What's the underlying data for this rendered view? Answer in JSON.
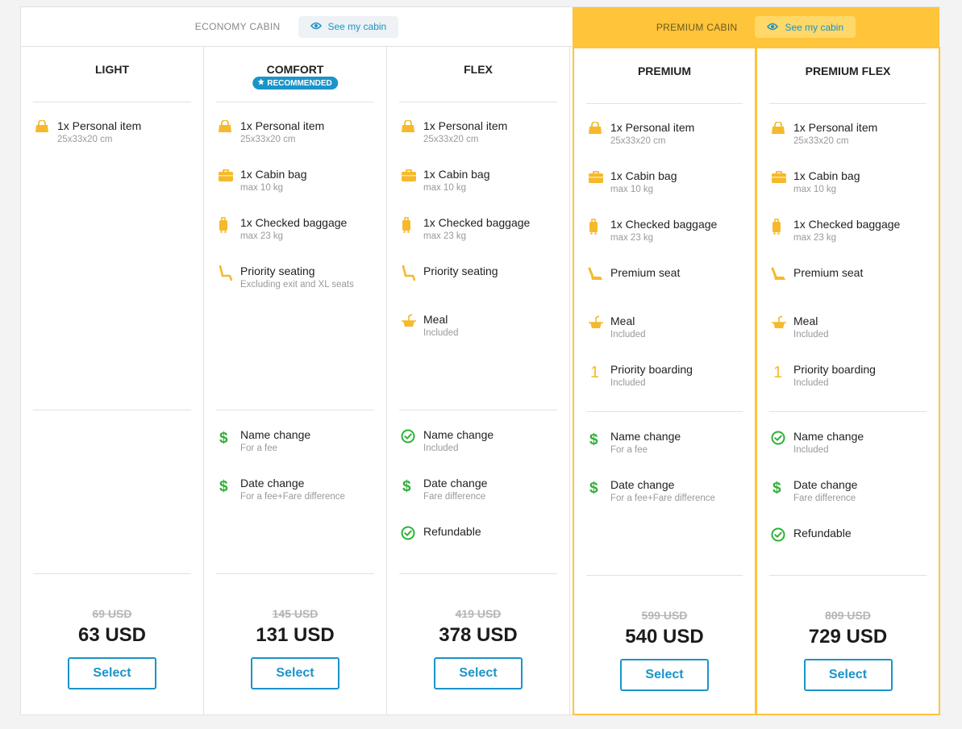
{
  "cabins": {
    "economy": {
      "label": "ECONOMY CABIN",
      "button": "See my cabin"
    },
    "premium": {
      "label": "PREMIUM CABIN",
      "button": "See my cabin"
    }
  },
  "colors": {
    "accent": "#1a94c9",
    "premium": "#fec43a",
    "icon_yellow": "#f5b92b",
    "icon_green": "#2eb135"
  },
  "fares": [
    {
      "name": "LIGHT",
      "badge": "",
      "features": [
        {
          "icon": "handbag-icon",
          "title": "1x Personal item",
          "sub": "25x33x20 cm"
        }
      ],
      "flex": [],
      "old_price": "69 USD",
      "price": "63 USD",
      "select": "Select"
    },
    {
      "name": "COMFORT",
      "badge": "RECOMMENDED",
      "features": [
        {
          "icon": "handbag-icon",
          "title": "1x Personal item",
          "sub": "25x33x20 cm"
        },
        {
          "icon": "cabin-bag-icon",
          "title": "1x Cabin bag",
          "sub": "max 10 kg"
        },
        {
          "icon": "checked-bag-icon",
          "title": "1x Checked baggage",
          "sub": "max 23 kg"
        },
        {
          "icon": "seat-icon",
          "title": "Priority seating",
          "sub": "Excluding exit and XL seats"
        }
      ],
      "flex": [
        {
          "icon": "dollar-icon",
          "title": "Name change",
          "sub": "For a fee"
        },
        {
          "icon": "dollar-icon",
          "title": "Date change",
          "sub": "For a fee+Fare difference"
        }
      ],
      "old_price": "145 USD",
      "price": "131 USD",
      "select": "Select"
    },
    {
      "name": "FLEX",
      "badge": "",
      "features": [
        {
          "icon": "handbag-icon",
          "title": "1x Personal item",
          "sub": "25x33x20 cm"
        },
        {
          "icon": "cabin-bag-icon",
          "title": "1x Cabin bag",
          "sub": "max 10 kg"
        },
        {
          "icon": "checked-bag-icon",
          "title": "1x Checked baggage",
          "sub": "max 23 kg"
        },
        {
          "icon": "seat-icon",
          "title": "Priority seating",
          "sub": ""
        },
        {
          "icon": "meal-icon",
          "title": "Meal",
          "sub": "Included"
        }
      ],
      "flex": [
        {
          "icon": "check-circle-icon",
          "title": "Name change",
          "sub": "Included"
        },
        {
          "icon": "dollar-icon",
          "title": "Date change",
          "sub": "Fare difference"
        },
        {
          "icon": "check-circle-icon",
          "title": "Refundable",
          "sub": ""
        }
      ],
      "old_price": "419 USD",
      "price": "378 USD",
      "select": "Select"
    },
    {
      "name": "PREMIUM",
      "badge": "",
      "features": [
        {
          "icon": "handbag-icon",
          "title": "1x Personal item",
          "sub": "25x33x20 cm"
        },
        {
          "icon": "cabin-bag-icon",
          "title": "1x Cabin bag",
          "sub": "max 10 kg"
        },
        {
          "icon": "checked-bag-icon",
          "title": "1x Checked baggage",
          "sub": "max 23 kg"
        },
        {
          "icon": "premium-seat-icon",
          "title": "Premium seat",
          "sub": ""
        },
        {
          "icon": "meal-icon",
          "title": "Meal",
          "sub": "Included"
        },
        {
          "icon": "priority-boarding-icon",
          "title": "Priority boarding",
          "sub": "Included"
        }
      ],
      "flex": [
        {
          "icon": "dollar-icon",
          "title": "Name change",
          "sub": "For a fee"
        },
        {
          "icon": "dollar-icon",
          "title": "Date change",
          "sub": "For a fee+Fare difference"
        }
      ],
      "old_price": "599 USD",
      "price": "540 USD",
      "select": "Select"
    },
    {
      "name": "PREMIUM FLEX",
      "badge": "",
      "features": [
        {
          "icon": "handbag-icon",
          "title": "1x Personal item",
          "sub": "25x33x20 cm"
        },
        {
          "icon": "cabin-bag-icon",
          "title": "1x Cabin bag",
          "sub": "max 10 kg"
        },
        {
          "icon": "checked-bag-icon",
          "title": "1x Checked baggage",
          "sub": "max 23 kg"
        },
        {
          "icon": "premium-seat-icon",
          "title": "Premium seat",
          "sub": ""
        },
        {
          "icon": "meal-icon",
          "title": "Meal",
          "sub": "Included"
        },
        {
          "icon": "priority-boarding-icon",
          "title": "Priority boarding",
          "sub": "Included"
        }
      ],
      "flex": [
        {
          "icon": "check-circle-icon",
          "title": "Name change",
          "sub": "Included"
        },
        {
          "icon": "dollar-icon",
          "title": "Date change",
          "sub": "Fare difference"
        },
        {
          "icon": "check-circle-icon",
          "title": "Refundable",
          "sub": ""
        }
      ],
      "old_price": "809 USD",
      "price": "729 USD",
      "select": "Select"
    }
  ]
}
